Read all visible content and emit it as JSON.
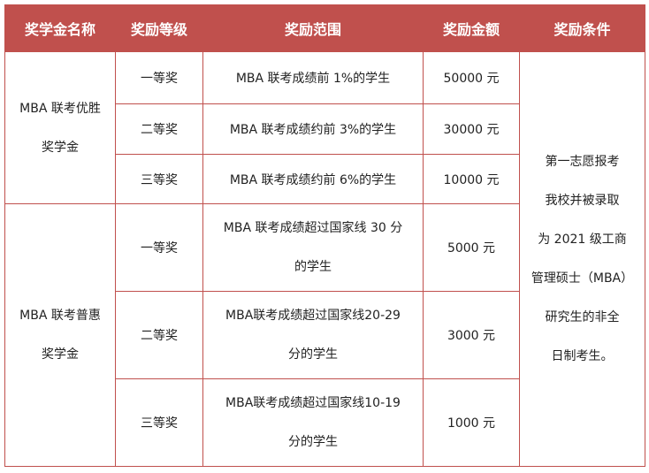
{
  "theme": {
    "header_bg": "#C0504D",
    "border": "#C0504D",
    "header_text": "#FFFFFF"
  },
  "headers": [
    "奖学金名称",
    "奖励等级",
    "奖励范围",
    "奖励金额",
    "奖励条件"
  ],
  "groups": [
    {
      "name_lines": [
        "MBA 联考优胜",
        "奖学金"
      ],
      "rows": [
        {
          "level": "一等奖",
          "range_lines": [
            "MBA 联考成绩前 1%的学生"
          ],
          "amount": "50000 元"
        },
        {
          "level": "二等奖",
          "range_lines": [
            "MBA 联考成绩约前 3%的学生"
          ],
          "amount": "30000 元"
        },
        {
          "level": "三等奖",
          "range_lines": [
            "MBA 联考成绩约前 6%的学生"
          ],
          "amount": "10000 元"
        }
      ]
    },
    {
      "name_lines": [
        "MBA 联考普惠",
        "奖学金"
      ],
      "rows": [
        {
          "level": "一等奖",
          "range_lines": [
            "MBA 联考成绩超过国家线 30 分",
            "的学生"
          ],
          "amount": "5000 元"
        },
        {
          "level": "二等奖",
          "range_lines": [
            "MBA联考成绩超过国家线20-29",
            "分的学生"
          ],
          "amount": "3000 元"
        },
        {
          "level": "三等奖",
          "range_lines": [
            "MBA联考成绩超过国家线10-19",
            "分的学生"
          ],
          "amount": "1000 元"
        }
      ]
    }
  ],
  "condition_lines": [
    "第一志愿报考",
    "我校并被录取",
    "为 2021 级工商",
    "管理硕士（MBA）",
    "研究生的非全",
    "日制考生。"
  ]
}
